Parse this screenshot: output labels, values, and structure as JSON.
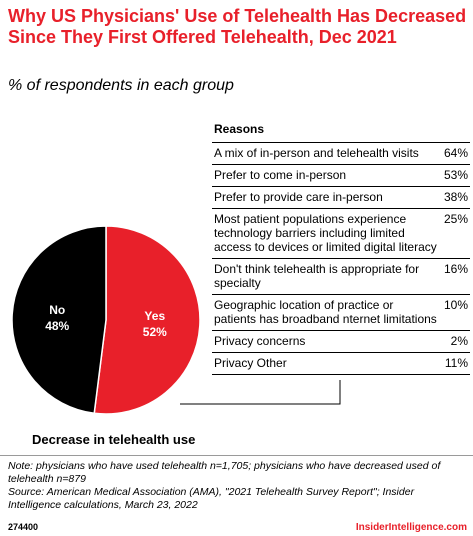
{
  "title": "Why US Physicians' Use of Telehealth Has Decreased Since They First Offered Telehealth, Dec 2021",
  "subtitle": "% of respondents in each group",
  "colors": {
    "accent": "#e8202a",
    "no": "#000000",
    "yes": "#e8202a"
  },
  "chart_data": [
    {
      "type": "pie",
      "title": "Decrease in telehealth use",
      "slices": [
        {
          "label": "No",
          "value": 48,
          "display": "48%",
          "color": "#000000"
        },
        {
          "label": "Yes",
          "value": 52,
          "display": "52%",
          "color": "#e8202a"
        }
      ]
    },
    {
      "type": "table",
      "title": "Reasons",
      "rows": [
        {
          "label": "A mix of in-person and telehealth visits",
          "value": 64,
          "display": "64%"
        },
        {
          "label": "Prefer to come in-person",
          "value": 53,
          "display": "53%"
        },
        {
          "label": "Prefer to provide care in-person",
          "value": 38,
          "display": "38%"
        },
        {
          "label": "Most patient populations experience technology barriers including limited access to devices or limited digital literacy",
          "value": 25,
          "display": "25%"
        },
        {
          "label": "Don't think telehealth is appropriate for specialty",
          "value": 16,
          "display": "16%"
        },
        {
          "label": "Geographic location of practice or patients has broadband nternet limitations",
          "value": 10,
          "display": "10%"
        },
        {
          "label": "Privacy concerns",
          "value": 2,
          "display": "2%"
        },
        {
          "label": "Privacy Other",
          "value": 11,
          "display": "11%"
        }
      ]
    }
  ],
  "note": "Note: physicians who have used telehealth n=1,705; physicians who have decreased used of telehealth n=879",
  "source": "Source: American Medical Association (AMA), \"2021 Telehealth Survey Report\"; Insider Intelligence calculations, March 23, 2022",
  "footer": {
    "id": "274400",
    "brand": "InsiderIntelligence.com"
  }
}
